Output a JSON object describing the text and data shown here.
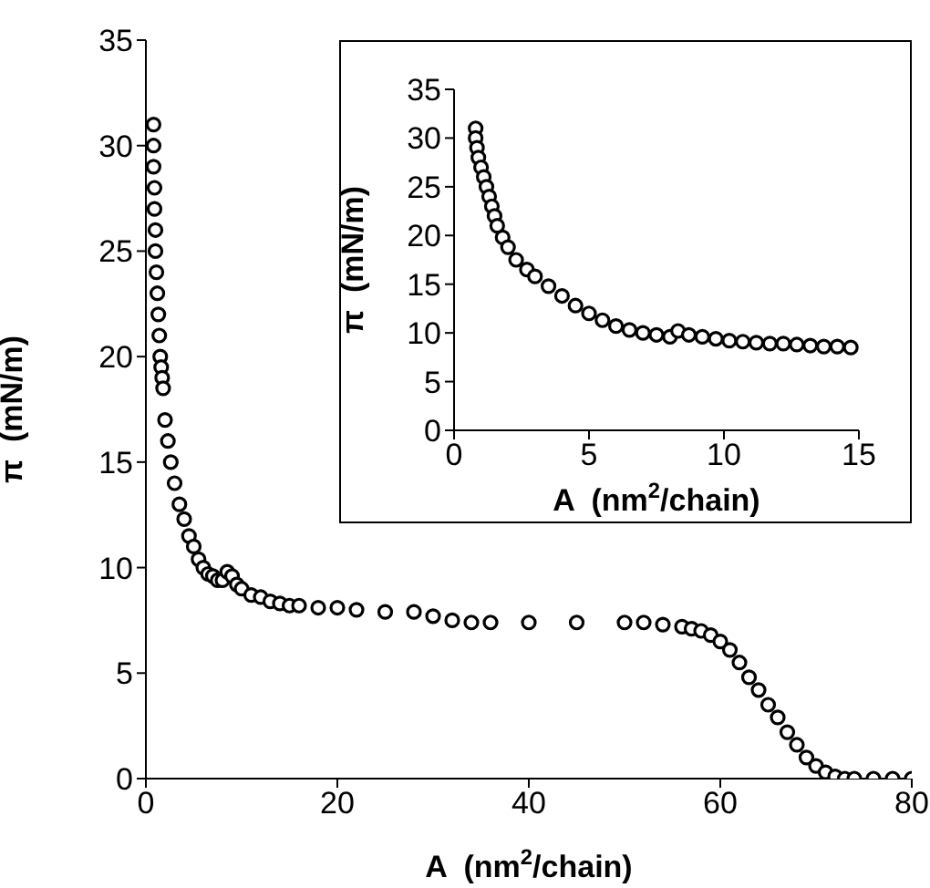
{
  "chart_data": [
    {
      "type": "scatter",
      "xlabel": "A  (nm$^{2}$/chain)",
      "ylabel": "π  (mN/m)",
      "marker": "circle",
      "xlim": [
        0,
        80
      ],
      "xticks": [
        0,
        20,
        40,
        60,
        80
      ],
      "ylim": [
        0,
        35
      ],
      "yticks": [
        0,
        5,
        10,
        15,
        20,
        25,
        30,
        35
      ],
      "series": [
        {
          "color": "#000000",
          "x": [
            0.8,
            0.8,
            0.8,
            0.9,
            0.9,
            1.0,
            1.0,
            1.1,
            1.2,
            1.3,
            1.4,
            1.5,
            1.6,
            1.7,
            1.8,
            2.0,
            2.3,
            2.6,
            3.0,
            3.5,
            4.0,
            4.5,
            5.0,
            5.5,
            6.0,
            6.5,
            7.0,
            7.5,
            8.0,
            8.5,
            9.0,
            9.5,
            10,
            11,
            12,
            13,
            14,
            15,
            16,
            18,
            20,
            22,
            25,
            28,
            30,
            32,
            34,
            36,
            40,
            45,
            50,
            52,
            54,
            56,
            57,
            58,
            59,
            60,
            61,
            62,
            63,
            64,
            65,
            66,
            67,
            68,
            69,
            70,
            71,
            72,
            73,
            74,
            76,
            78,
            80
          ],
          "values": [
            31,
            30,
            29,
            28,
            27,
            26,
            25,
            24,
            23,
            22,
            21,
            20,
            19.5,
            19,
            18.5,
            17,
            16,
            15,
            14,
            13,
            12.3,
            11.5,
            11,
            10.4,
            10,
            9.7,
            9.6,
            9.4,
            9.4,
            9.8,
            9.6,
            9.2,
            9,
            8.7,
            8.6,
            8.4,
            8.3,
            8.2,
            8.2,
            8.1,
            8.1,
            8,
            7.9,
            7.9,
            7.7,
            7.5,
            7.4,
            7.4,
            7.4,
            7.4,
            7.4,
            7.4,
            7.3,
            7.2,
            7.1,
            7,
            6.8,
            6.5,
            6.1,
            5.5,
            4.8,
            4.2,
            3.5,
            2.9,
            2.2,
            1.6,
            1,
            0.6,
            0.3,
            0.1,
            0,
            0,
            0,
            0,
            0
          ]
        }
      ]
    },
    {
      "type": "scatter",
      "xlabel": "A  (nm$^{2}$/chain)",
      "ylabel": "π  (mN/m)",
      "marker": "circle",
      "xlim": [
        0,
        15
      ],
      "xticks": [
        0,
        5,
        10,
        15
      ],
      "ylim": [
        0,
        35
      ],
      "yticks": [
        0,
        5,
        10,
        15,
        20,
        25,
        30,
        35
      ],
      "series": [
        {
          "color": "#000000",
          "x": [
            0.8,
            0.8,
            0.85,
            0.9,
            1.0,
            1.1,
            1.2,
            1.3,
            1.4,
            1.5,
            1.6,
            1.8,
            2.0,
            2.3,
            2.7,
            3.0,
            3.5,
            4.0,
            4.5,
            5.0,
            5.5,
            6.0,
            6.5,
            7.0,
            7.5,
            8.0,
            8.3,
            8.7,
            9.2,
            9.7,
            10.2,
            10.7,
            11.2,
            11.7,
            12.2,
            12.7,
            13.2,
            13.7,
            14.2,
            14.7
          ],
          "values": [
            31,
            30,
            29,
            28,
            27,
            26,
            25,
            24,
            23,
            22,
            21,
            19.8,
            18.8,
            17.5,
            16.5,
            15.8,
            14.8,
            13.8,
            12.8,
            12,
            11.3,
            10.7,
            10.3,
            10,
            9.8,
            9.6,
            10.2,
            9.8,
            9.6,
            9.4,
            9.2,
            9.1,
            9,
            8.9,
            8.9,
            8.8,
            8.7,
            8.6,
            8.6,
            8.5
          ]
        }
      ]
    }
  ]
}
